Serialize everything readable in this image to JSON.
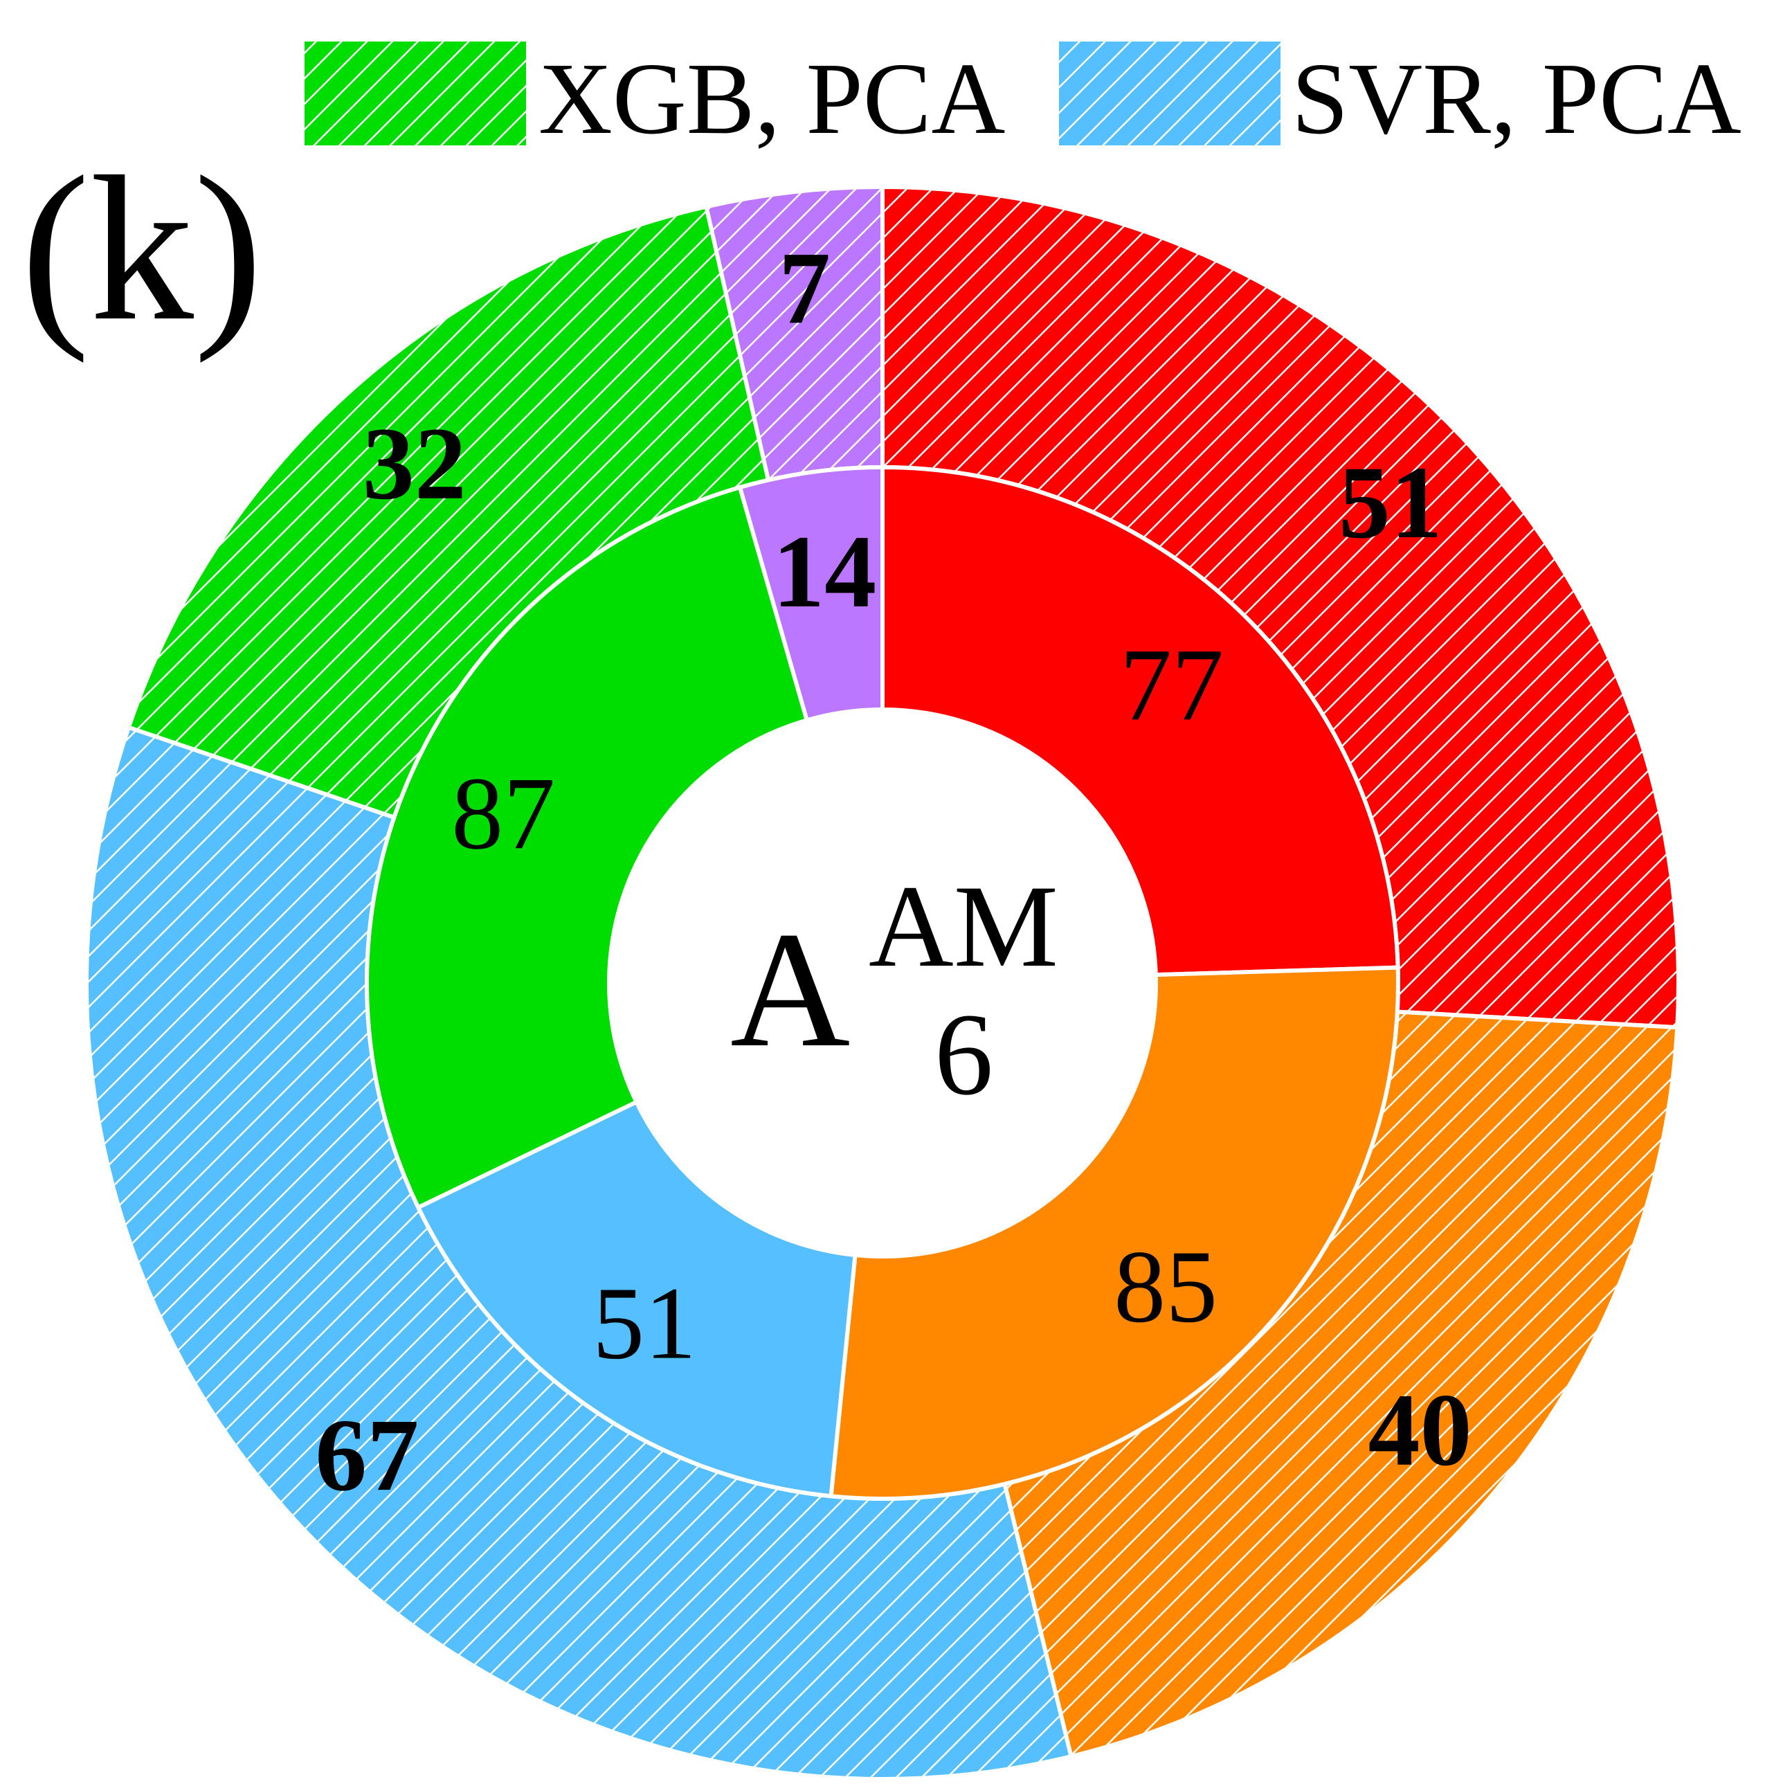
{
  "panel_label": "(k)",
  "center": {
    "big_letter": "A",
    "superscript": "AM",
    "subscript": "6"
  },
  "legend": [
    {
      "label": "XGB, PCA",
      "color": "#00dd00",
      "hatched": true
    },
    {
      "label": "SVR, PCA",
      "color": "#55bfff",
      "hatched": true
    }
  ],
  "chart_data": {
    "type": "pie",
    "variant": "nested-donut",
    "rings": [
      {
        "ring": "inner",
        "fill": "solid",
        "slices": [
          {
            "value": 77,
            "label": "77",
            "color": "#ff0000"
          },
          {
            "value": 85,
            "label": "85",
            "color": "#ff8800"
          },
          {
            "value": 51,
            "label": "51",
            "color": "#55bfff"
          },
          {
            "value": 87,
            "label": "87",
            "color": "#00dd00"
          },
          {
            "value": 14,
            "label": "14",
            "color": "#bb77ff",
            "bold": true
          }
        ]
      },
      {
        "ring": "outer",
        "fill": "hatched",
        "slices": [
          {
            "value": 51,
            "label": "51",
            "color": "#ff0000"
          },
          {
            "value": 40,
            "label": "40",
            "color": "#ff8800"
          },
          {
            "value": 67,
            "label": "67",
            "color": "#55bfff"
          },
          {
            "value": 32,
            "label": "32",
            "color": "#00dd00"
          },
          {
            "value": 7,
            "label": "7",
            "color": "#bb77ff"
          }
        ]
      }
    ],
    "start": "top",
    "direction": "clockwise"
  }
}
